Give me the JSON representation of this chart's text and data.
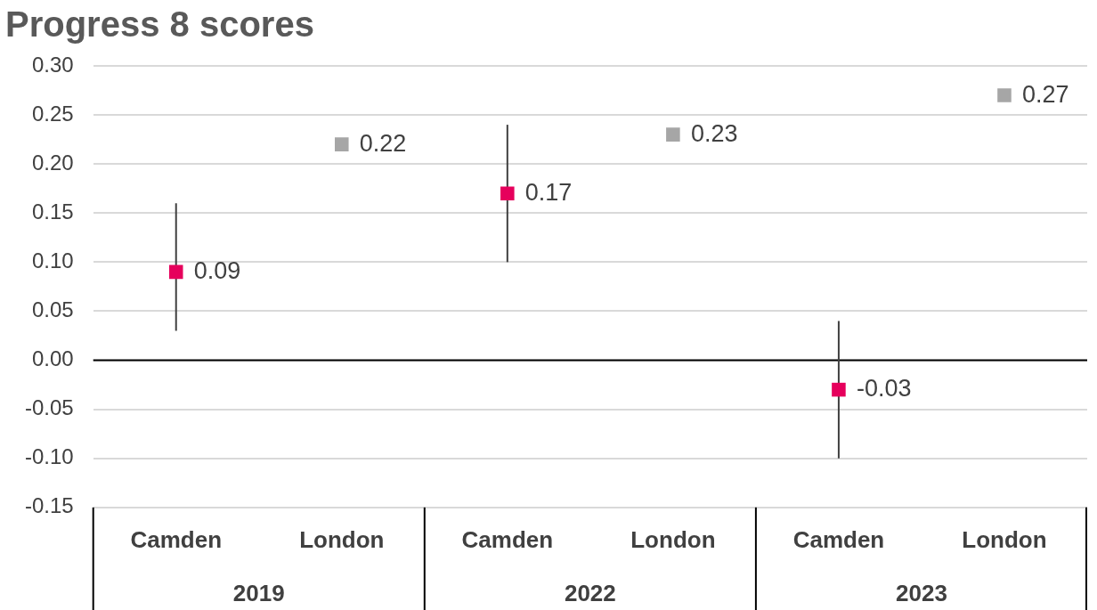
{
  "chart_data": {
    "type": "scatter",
    "title": "Progress 8 scores",
    "categories": [
      "Camden",
      "London",
      "Camden",
      "London",
      "Camden",
      "London"
    ],
    "values": [
      0.09,
      0.22,
      0.17,
      0.23,
      -0.03,
      0.27
    ],
    "colors": [
      "#e6005c",
      "#a6a6a6",
      "#e6005c",
      "#a6a6a6",
      "#e6005c",
      "#a6a6a6"
    ],
    "errors": [
      [
        0.03,
        0.16
      ],
      null,
      [
        0.1,
        0.24
      ],
      null,
      [
        -0.1,
        0.04
      ],
      null
    ],
    "annotations": [
      "2019",
      "2022",
      "2023"
    ],
    "ylim": [
      -0.15,
      0.3
    ],
    "yticks": [
      {
        "value": -0.15,
        "label": "-0.15"
      },
      {
        "value": -0.1,
        "label": "-0.10"
      },
      {
        "value": -0.05,
        "label": "-0.05"
      },
      {
        "value": 0,
        "label": "0.00"
      },
      {
        "value": 0.05,
        "label": "0.05"
      },
      {
        "value": 0.1,
        "label": "0.10"
      },
      {
        "value": 0.15,
        "label": "0.15"
      },
      {
        "value": 0.2,
        "label": "0.20"
      },
      {
        "value": 0.25,
        "label": "0.25"
      },
      {
        "value": 0.3,
        "label": "0.30"
      }
    ],
    "grid": "y",
    "marker": "square",
    "data_labels": true,
    "legend": false
  }
}
